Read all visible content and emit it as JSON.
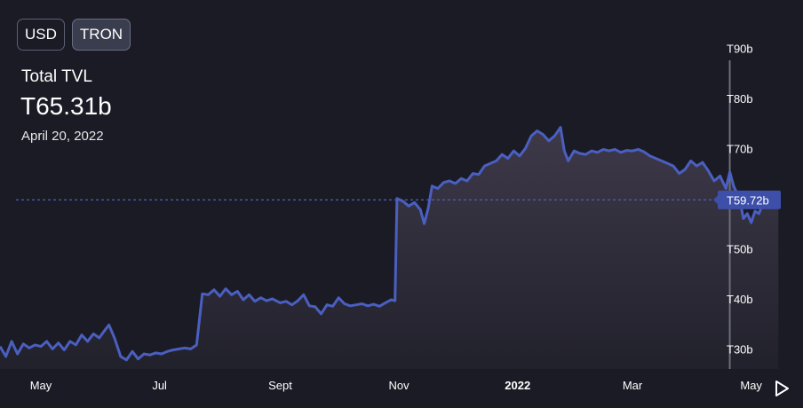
{
  "toggles": [
    {
      "label": "USD",
      "active": false
    },
    {
      "label": "TRON",
      "active": true
    }
  ],
  "stat": {
    "label": "Total TVL",
    "value": "T65.31b",
    "date": "April 20, 2022"
  },
  "colors": {
    "background": "#1a1b24",
    "line": "#4a5fc0",
    "area_top": "#4a4356",
    "current_badge": "#3d4fa8",
    "crosshair": "#6b6d78",
    "axis_text": "#ffffff"
  },
  "controls": {
    "play_icon": "play-icon"
  },
  "chart_data": {
    "type": "area",
    "x_range": [
      "2021-04-10",
      "2022-05-29"
    ],
    "ylim": [
      26,
      95
    ],
    "yticks": [
      {
        "value": 30,
        "label": "T30b"
      },
      {
        "value": 40,
        "label": "T40b"
      },
      {
        "value": 50,
        "label": "T50b"
      },
      {
        "value": 60,
        "label": "T60b"
      },
      {
        "value": 70,
        "label": "T70b"
      },
      {
        "value": 80,
        "label": "T80b"
      },
      {
        "value": 90,
        "label": "T90b"
      }
    ],
    "hidden_ytick": 60,
    "xticks": [
      {
        "date": "2021-05-01",
        "label": "May",
        "bold": false
      },
      {
        "date": "2021-07-01",
        "label": "Jul",
        "bold": false
      },
      {
        "date": "2021-09-01",
        "label": "Sept",
        "bold": false
      },
      {
        "date": "2021-11-01",
        "label": "Nov",
        "bold": false
      },
      {
        "date": "2022-01-01",
        "label": "2022",
        "bold": true
      },
      {
        "date": "2022-03-01",
        "label": "Mar",
        "bold": false
      },
      {
        "date": "2022-05-01",
        "label": "May",
        "bold": false
      }
    ],
    "current_value": 59.72,
    "current_label": "T59.72b",
    "crosshair_date": "2022-04-20",
    "series": [
      {
        "points": [
          [
            "2021-04-10",
            30.5
          ],
          [
            "2021-04-13",
            28.5
          ],
          [
            "2021-04-16",
            31.5
          ],
          [
            "2021-04-19",
            29.0
          ],
          [
            "2021-04-22",
            31.0
          ],
          [
            "2021-04-25",
            30.2
          ],
          [
            "2021-04-28",
            30.8
          ],
          [
            "2021-05-01",
            30.5
          ],
          [
            "2021-05-04",
            31.5
          ],
          [
            "2021-05-07",
            30.0
          ],
          [
            "2021-05-10",
            31.2
          ],
          [
            "2021-05-13",
            29.8
          ],
          [
            "2021-05-16",
            31.5
          ],
          [
            "2021-05-19",
            30.8
          ],
          [
            "2021-05-22",
            32.8
          ],
          [
            "2021-05-25",
            31.5
          ],
          [
            "2021-05-28",
            33.0
          ],
          [
            "2021-05-31",
            32.2
          ],
          [
            "2021-06-03",
            33.8
          ],
          [
            "2021-06-05",
            34.8
          ],
          [
            "2021-06-08",
            32.0
          ],
          [
            "2021-06-11",
            28.5
          ],
          [
            "2021-06-14",
            27.8
          ],
          [
            "2021-06-17",
            29.5
          ],
          [
            "2021-06-20",
            28.0
          ],
          [
            "2021-06-23",
            29.0
          ],
          [
            "2021-06-26",
            28.8
          ],
          [
            "2021-06-29",
            29.2
          ],
          [
            "2021-07-02",
            29.0
          ],
          [
            "2021-07-05",
            29.5
          ],
          [
            "2021-07-08",
            29.8
          ],
          [
            "2021-07-11",
            30.0
          ],
          [
            "2021-07-14",
            30.2
          ],
          [
            "2021-07-17",
            30.0
          ],
          [
            "2021-07-20",
            30.8
          ],
          [
            "2021-07-23",
            41.0
          ],
          [
            "2021-07-26",
            40.8
          ],
          [
            "2021-07-29",
            41.8
          ],
          [
            "2021-08-01",
            40.5
          ],
          [
            "2021-08-04",
            42.0
          ],
          [
            "2021-08-07",
            40.8
          ],
          [
            "2021-08-10",
            41.5
          ],
          [
            "2021-08-13",
            39.8
          ],
          [
            "2021-08-16",
            40.8
          ],
          [
            "2021-08-19",
            39.5
          ],
          [
            "2021-08-22",
            40.2
          ],
          [
            "2021-08-25",
            39.6
          ],
          [
            "2021-08-28",
            40.0
          ],
          [
            "2021-09-01",
            39.2
          ],
          [
            "2021-09-04",
            39.5
          ],
          [
            "2021-09-07",
            38.8
          ],
          [
            "2021-09-10",
            39.6
          ],
          [
            "2021-09-13",
            40.8
          ],
          [
            "2021-09-16",
            38.6
          ],
          [
            "2021-09-19",
            38.4
          ],
          [
            "2021-09-22",
            37.0
          ],
          [
            "2021-09-25",
            38.8
          ],
          [
            "2021-09-28",
            38.5
          ],
          [
            "2021-10-01",
            40.2
          ],
          [
            "2021-10-04",
            39.0
          ],
          [
            "2021-10-07",
            38.6
          ],
          [
            "2021-10-10",
            38.8
          ],
          [
            "2021-10-13",
            39.0
          ],
          [
            "2021-10-16",
            38.6
          ],
          [
            "2021-10-19",
            38.9
          ],
          [
            "2021-10-22",
            38.5
          ],
          [
            "2021-10-25",
            39.2
          ],
          [
            "2021-10-28",
            39.8
          ],
          [
            "2021-10-30",
            39.6
          ],
          [
            "2021-10-31",
            60.0
          ],
          [
            "2021-11-03",
            59.5
          ],
          [
            "2021-11-06",
            58.5
          ],
          [
            "2021-11-09",
            59.2
          ],
          [
            "2021-11-12",
            57.8
          ],
          [
            "2021-11-14",
            55.0
          ],
          [
            "2021-11-16",
            58.0
          ],
          [
            "2021-11-18",
            62.5
          ],
          [
            "2021-11-21",
            62.0
          ],
          [
            "2021-11-24",
            63.2
          ],
          [
            "2021-11-27",
            63.5
          ],
          [
            "2021-11-30",
            63.0
          ],
          [
            "2021-12-03",
            64.0
          ],
          [
            "2021-12-06",
            63.5
          ],
          [
            "2021-12-09",
            65.0
          ],
          [
            "2021-12-12",
            64.8
          ],
          [
            "2021-12-15",
            66.5
          ],
          [
            "2021-12-18",
            67.0
          ],
          [
            "2021-12-21",
            67.5
          ],
          [
            "2021-12-24",
            68.8
          ],
          [
            "2021-12-27",
            68.0
          ],
          [
            "2021-12-30",
            69.5
          ],
          [
            "2022-01-02",
            68.5
          ],
          [
            "2022-01-05",
            70.0
          ],
          [
            "2022-01-08",
            72.5
          ],
          [
            "2022-01-11",
            73.5
          ],
          [
            "2022-01-14",
            72.8
          ],
          [
            "2022-01-17",
            71.5
          ],
          [
            "2022-01-20",
            72.5
          ],
          [
            "2022-01-23",
            74.2
          ],
          [
            "2022-01-25",
            69.5
          ],
          [
            "2022-01-27",
            67.5
          ],
          [
            "2022-01-30",
            69.5
          ],
          [
            "2022-02-02",
            69.0
          ],
          [
            "2022-02-05",
            68.8
          ],
          [
            "2022-02-08",
            69.5
          ],
          [
            "2022-02-11",
            69.2
          ],
          [
            "2022-02-14",
            69.8
          ],
          [
            "2022-02-17",
            69.5
          ],
          [
            "2022-02-20",
            69.8
          ],
          [
            "2022-02-23",
            69.2
          ],
          [
            "2022-02-26",
            69.6
          ],
          [
            "2022-03-01",
            69.5
          ],
          [
            "2022-03-04",
            69.8
          ],
          [
            "2022-03-07",
            69.3
          ],
          [
            "2022-03-10",
            68.5
          ],
          [
            "2022-03-13",
            68.0
          ],
          [
            "2022-03-16",
            67.5
          ],
          [
            "2022-03-19",
            67.0
          ],
          [
            "2022-03-22",
            66.5
          ],
          [
            "2022-03-25",
            65.0
          ],
          [
            "2022-03-28",
            65.8
          ],
          [
            "2022-03-31",
            67.5
          ],
          [
            "2022-04-03",
            66.5
          ],
          [
            "2022-04-06",
            67.2
          ],
          [
            "2022-04-09",
            65.5
          ],
          [
            "2022-04-12",
            63.5
          ],
          [
            "2022-04-15",
            64.5
          ],
          [
            "2022-04-18",
            62.0
          ],
          [
            "2022-04-20",
            65.31
          ],
          [
            "2022-04-22",
            62.5
          ],
          [
            "2022-04-25",
            60.0
          ],
          [
            "2022-04-27",
            56.0
          ],
          [
            "2022-04-29",
            57.0
          ],
          [
            "2022-05-01",
            55.2
          ],
          [
            "2022-05-03",
            57.5
          ],
          [
            "2022-05-05",
            57.0
          ],
          [
            "2022-05-07",
            59.0
          ],
          [
            "2022-05-09",
            60.5
          ],
          [
            "2022-05-12",
            60.0
          ],
          [
            "2022-05-15",
            59.72
          ]
        ]
      }
    ]
  }
}
